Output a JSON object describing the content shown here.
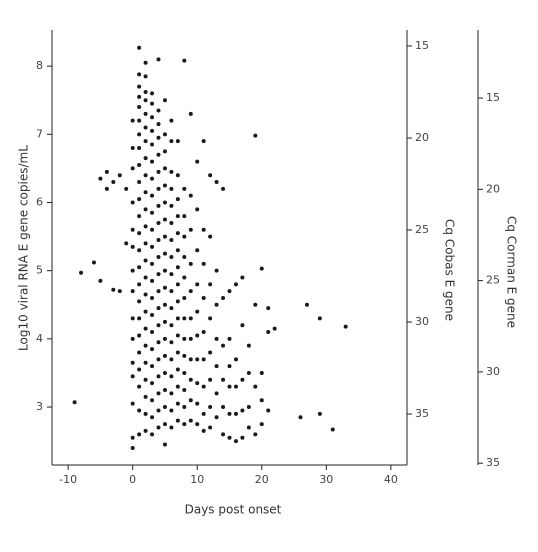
{
  "chart_data": {
    "type": "scatter",
    "x_label": "Days post onset",
    "y_label": "Log10 viral RNA E gene copies/mL",
    "y2_label": "Cq Cobas E gene",
    "y3_label": "Cq Corman E gene",
    "color": "#1a1a1a",
    "xlim": [
      -12.5,
      42.5
    ],
    "xticks": [
      -10,
      0,
      10,
      20,
      30,
      40
    ],
    "ylim": [
      2.15,
      8.53
    ],
    "yticks": [
      3,
      4,
      5,
      6,
      7,
      8
    ],
    "y2lim": [
      37.77,
      14.13
    ],
    "y2ticks": [
      15,
      20,
      25,
      30,
      35
    ],
    "y3lim": [
      35.1,
      11.27
    ],
    "y3ticks": [
      15,
      20,
      25,
      30,
      35
    ],
    "x": [
      -9,
      -8,
      -6,
      -5,
      -5,
      -4,
      -4,
      -3,
      -3,
      -2,
      -2,
      -1,
      -1,
      0,
      0,
      0,
      0,
      0,
      0,
      0,
      0,
      0,
      0,
      0,
      0,
      0,
      0,
      0,
      1,
      1,
      1,
      1,
      1,
      1,
      1,
      1,
      1,
      1,
      1,
      1,
      1,
      1,
      1,
      1,
      1,
      1,
      1,
      1,
      1,
      1,
      1,
      1,
      2,
      2,
      2,
      2,
      2,
      2,
      2,
      2,
      2,
      2,
      2,
      2,
      2,
      2,
      2,
      2,
      2,
      2,
      2,
      2,
      2,
      2,
      2,
      2,
      3,
      3,
      3,
      3,
      3,
      3,
      3,
      3,
      3,
      3,
      3,
      3,
      3,
      3,
      3,
      3,
      3,
      3,
      3,
      3,
      3,
      3,
      4,
      4,
      4,
      4,
      4,
      4,
      4,
      4,
      4,
      4,
      4,
      4,
      4,
      4,
      4,
      4,
      4,
      4,
      4,
      4,
      4,
      5,
      5,
      5,
      5,
      5,
      5,
      5,
      5,
      5,
      5,
      5,
      5,
      5,
      5,
      5,
      5,
      5,
      5,
      5,
      5,
      6,
      6,
      6,
      6,
      6,
      6,
      6,
      6,
      6,
      6,
      6,
      6,
      6,
      6,
      6,
      6,
      6,
      6,
      7,
      7,
      7,
      7,
      7,
      7,
      7,
      7,
      7,
      7,
      7,
      7,
      7,
      7,
      7,
      7,
      8,
      8,
      8,
      8,
      8,
      8,
      8,
      8,
      8,
      8,
      8,
      8,
      8,
      8,
      9,
      9,
      9,
      9,
      9,
      9,
      9,
      9,
      9,
      9,
      9,
      10,
      10,
      10,
      10,
      10,
      10,
      10,
      10,
      10,
      10,
      11,
      11,
      11,
      11,
      11,
      11,
      11,
      11,
      11,
      12,
      12,
      12,
      12,
      12,
      12,
      12,
      12,
      13,
      13,
      13,
      13,
      13,
      13,
      13,
      14,
      14,
      14,
      14,
      14,
      14,
      15,
      15,
      15,
      15,
      15,
      15,
      16,
      16,
      16,
      16,
      16,
      17,
      17,
      17,
      17,
      17,
      18,
      18,
      18,
      18,
      19,
      19,
      19,
      19,
      20,
      20,
      20,
      20,
      21,
      21,
      21,
      22,
      26,
      27,
      29,
      29,
      31,
      33
    ],
    "values": [
      3.07,
      4.97,
      5.12,
      4.85,
      6.35,
      6.2,
      6.45,
      4.72,
      6.3,
      4.7,
      6.4,
      6.2,
      5.4,
      2.4,
      2.55,
      3.05,
      3.45,
      3.65,
      4.0,
      4.3,
      4.7,
      5.0,
      5.35,
      5.6,
      6.0,
      6.5,
      6.8,
      7.2,
      2.6,
      2.95,
      3.3,
      3.55,
      3.8,
      4.05,
      4.3,
      4.55,
      4.8,
      5.05,
      5.3,
      5.55,
      5.8,
      6.05,
      6.3,
      6.55,
      6.8,
      7.0,
      7.2,
      7.4,
      7.55,
      7.7,
      7.88,
      8.27,
      2.65,
      2.9,
      3.15,
      3.4,
      3.65,
      3.9,
      4.15,
      4.4,
      4.65,
      4.9,
      5.15,
      5.4,
      5.65,
      5.9,
      6.15,
      6.4,
      6.65,
      6.9,
      7.1,
      7.3,
      7.5,
      7.62,
      7.85,
      8.05,
      2.6,
      2.85,
      3.1,
      3.35,
      3.6,
      3.85,
      4.1,
      4.35,
      4.6,
      4.85,
      5.1,
      5.35,
      5.6,
      5.85,
      6.1,
      6.35,
      6.6,
      6.85,
      7.05,
      7.25,
      7.45,
      7.6,
      2.7,
      2.95,
      3.2,
      3.45,
      3.7,
      3.95,
      4.2,
      4.45,
      4.7,
      4.95,
      5.2,
      5.45,
      5.7,
      5.95,
      6.2,
      6.45,
      6.7,
      6.95,
      7.15,
      7.35,
      8.1,
      2.45,
      2.75,
      3.0,
      3.25,
      3.5,
      3.75,
      4.0,
      4.25,
      4.5,
      4.75,
      5.0,
      5.25,
      5.5,
      5.75,
      6.0,
      6.25,
      6.5,
      6.75,
      7.0,
      7.5,
      2.7,
      2.95,
      3.2,
      3.45,
      3.7,
      3.95,
      4.2,
      4.45,
      4.7,
      4.95,
      5.2,
      5.45,
      5.7,
      5.95,
      6.2,
      6.45,
      6.9,
      7.2,
      2.8,
      3.05,
      3.3,
      3.55,
      3.8,
      4.05,
      4.3,
      4.55,
      4.8,
      5.05,
      5.3,
      5.55,
      5.8,
      6.05,
      6.4,
      6.9,
      2.75,
      3.0,
      3.25,
      3.5,
      3.75,
      4.0,
      4.3,
      4.6,
      4.9,
      5.2,
      5.5,
      5.8,
      6.2,
      8.08,
      2.8,
      3.1,
      3.4,
      3.7,
      4.0,
      4.3,
      4.7,
      5.1,
      5.6,
      6.1,
      7.3,
      2.75,
      3.05,
      3.35,
      3.7,
      4.05,
      4.4,
      4.8,
      5.3,
      5.9,
      6.6,
      2.65,
      2.9,
      3.3,
      3.7,
      4.1,
      4.6,
      5.1,
      5.6,
      6.9,
      2.7,
      3.0,
      3.4,
      3.8,
      4.3,
      4.8,
      5.5,
      6.4,
      2.85,
      3.2,
      3.6,
      4.0,
      4.5,
      5.0,
      6.3,
      2.6,
      3.0,
      3.4,
      3.9,
      4.6,
      6.2,
      2.55,
      2.9,
      3.3,
      3.6,
      4.0,
      4.7,
      2.5,
      2.9,
      3.3,
      3.7,
      4.8,
      2.55,
      2.95,
      3.4,
      4.2,
      4.9,
      2.7,
      3.0,
      3.5,
      3.9,
      2.6,
      3.3,
      4.5,
      6.98,
      2.75,
      3.1,
      3.5,
      5.03,
      2.95,
      4.1,
      4.45,
      4.15,
      2.85,
      4.5,
      2.9,
      4.3,
      2.67,
      4.18
    ]
  }
}
